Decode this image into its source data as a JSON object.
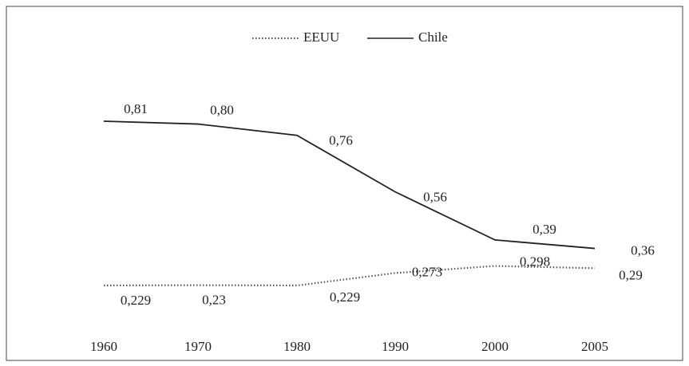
{
  "chart_data": {
    "type": "line",
    "categories": [
      "1960",
      "1970",
      "1980",
      "1990",
      "2000",
      "2005"
    ],
    "series": [
      {
        "name": "EEUU",
        "color": "#555555",
        "dash": "dotted",
        "values": [
          0.229,
          0.23,
          0.229,
          0.273,
          0.298,
          0.29
        ],
        "value_labels": [
          "0,229",
          "0,23",
          "0,229",
          "0,273",
          "0,298",
          "0,29"
        ]
      },
      {
        "name": "Chile",
        "color": "#222222",
        "dash": "solid",
        "values": [
          0.81,
          0.8,
          0.76,
          0.56,
          0.39,
          0.36
        ],
        "value_labels": [
          "0,81",
          "0,80",
          "0,76",
          "0,56",
          "0,39",
          "0,36"
        ]
      }
    ]
  }
}
